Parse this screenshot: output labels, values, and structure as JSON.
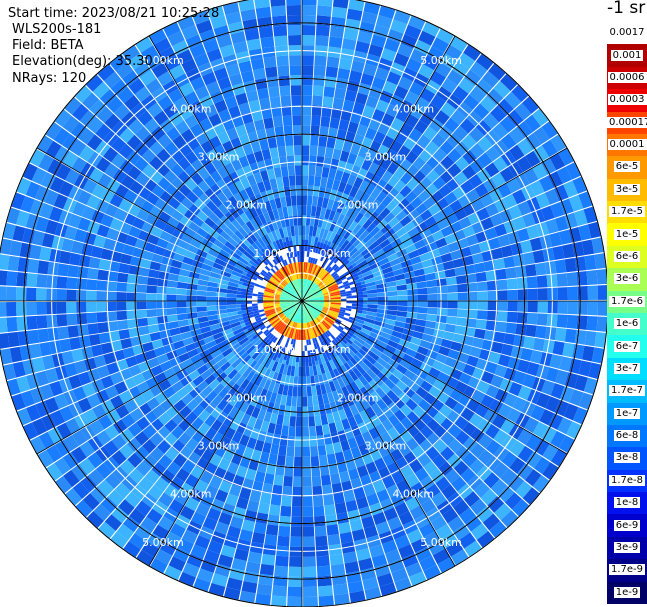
{
  "header": {
    "start_time": "Start time: 2023/08/21 10:25:28",
    "instrument": "WLS200s-181",
    "field": "Field: BETA",
    "elevation": "Elevation(deg): 35.30",
    "nrays": "NRays: 120"
  },
  "colorbar": {
    "unit": "-1 sr",
    "labels": [
      "0.0017",
      "0.001",
      "0.0006",
      "0.0003",
      "0.00017",
      "0.0001",
      "6e-5",
      "3e-5",
      "1.7e-5",
      "1e-5",
      "6e-6",
      "3e-6",
      "1.7e-6",
      "1e-6",
      "6e-7",
      "3e-7",
      "1.7e-7",
      "1e-7",
      "6e-8",
      "3e-8",
      "1.7e-8",
      "1e-8",
      "6e-9",
      "3e-9",
      "1.7e-9",
      "1e-9"
    ],
    "colors": [
      "#ffffff",
      "#b00000",
      "#cc0000",
      "#ee0000",
      "#ff4400",
      "#ff7700",
      "#ff9900",
      "#ffbb00",
      "#ffdd00",
      "#ffff00",
      "#ddff22",
      "#aaff55",
      "#77ff88",
      "#44ffcc",
      "#22ffee",
      "#00ddff",
      "#00bbff",
      "#0099ff",
      "#0077ff",
      "#0055ff",
      "#0033ff",
      "#0011ee",
      "#0000cc",
      "#0000aa",
      "#000088",
      "#000066"
    ]
  },
  "chart_data": {
    "type": "polar-ppi",
    "nrays": 120,
    "range_unit": "km",
    "range_max_km": 5.5,
    "range_rings_km": [
      1,
      2,
      3,
      4,
      5
    ],
    "ring_labels": [
      "1.00km",
      "2.00km",
      "3.00km",
      "4.00km",
      "5.00km"
    ],
    "spoke_step_deg": 30,
    "label_bearings_deg": [
      30,
      150,
      210,
      330
    ],
    "near_field_echo_radius_km": [
      0.4,
      0.7
    ],
    "background_level": "3e-8",
    "colors": {
      "ring": "#000000",
      "grid": "#ffffff",
      "background_blue": "#1177ff"
    }
  }
}
